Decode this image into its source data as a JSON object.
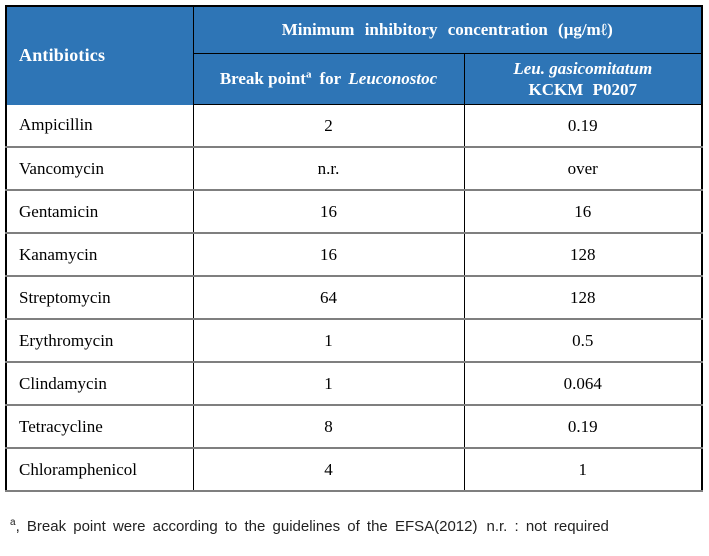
{
  "colors": {
    "header_bg": "#2E75B6",
    "header_text": "#FFFFFF",
    "body_text": "#000000",
    "row_divider_gray": "#7F7F7F",
    "grid_black": "#000000",
    "page_bg": "#FFFFFF"
  },
  "table": {
    "col1_header": "Antibiotics",
    "span_header": "Minimum inhibitory concentration (μg/mℓ)",
    "sub_headers": {
      "break_point": {
        "text": "Break point",
        "sup": "a",
        "mid": "for",
        "species": "Leuconostoc"
      },
      "strain": {
        "line1": "Leu. gasicomitatum",
        "line2": "KCKM P0207"
      }
    },
    "rows": [
      {
        "antibiotic": "Ampicillin",
        "break_point": "2",
        "mic": "0.19"
      },
      {
        "antibiotic": "Vancomycin",
        "break_point": "n.r.",
        "mic": "over"
      },
      {
        "antibiotic": "Gentamicin",
        "break_point": "16",
        "mic": "16"
      },
      {
        "antibiotic": "Kanamycin",
        "break_point": "16",
        "mic": "128"
      },
      {
        "antibiotic": "Streptomycin",
        "break_point": "64",
        "mic": "128"
      },
      {
        "antibiotic": "Erythromycin",
        "break_point": "1",
        "mic": "0.5"
      },
      {
        "antibiotic": "Clindamycin",
        "break_point": "1",
        "mic": "0.064"
      },
      {
        "antibiotic": "Tetracycline",
        "break_point": "8",
        "mic": "0.19"
      },
      {
        "antibiotic": "Chloramphenicol",
        "break_point": "4",
        "mic": "1"
      }
    ]
  },
  "footnote": {
    "sup": "a",
    "text": ", Break point were according to the guidelines of the EFSA(2012)",
    "note2": "n.r. : not required"
  }
}
